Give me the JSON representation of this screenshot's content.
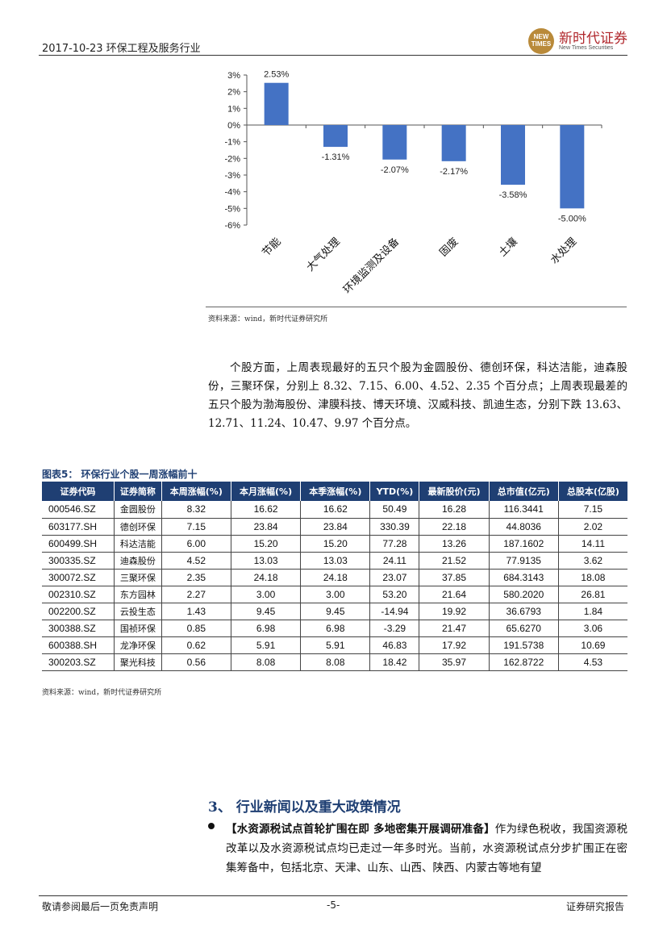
{
  "header": {
    "date_title": "2017-10-23 环保工程及服务行业",
    "logo_badge": "NEW TIMES",
    "logo_cn": "新时代证券",
    "logo_en": "New Times Securities"
  },
  "chart_data": {
    "type": "bar",
    "categories": [
      "节能",
      "大气处理",
      "环境监测及设备",
      "固废",
      "土壤",
      "水处理"
    ],
    "values": [
      2.53,
      -1.31,
      -2.07,
      -2.17,
      -3.58,
      -5.0
    ],
    "value_labels": [
      "2.53%",
      "-1.31%",
      "-2.07%",
      "-2.17%",
      "-3.58%",
      "-5.00%"
    ],
    "ylim": [
      -6,
      3
    ],
    "yticks": [
      "3%",
      "2%",
      "1%",
      "0%",
      "-1%",
      "-2%",
      "-3%",
      "-4%",
      "-5%",
      "-6%"
    ],
    "bar_color": "#4472c4",
    "grid": false,
    "title": "",
    "xlabel": "",
    "ylabel": ""
  },
  "chart_source": "资料来源：wind，新时代证券研究所",
  "paragraph": "个股方面，上周表现最好的五只个股为金圆股份、德创环保，科达洁能，迪森股份，三聚环保，分别上 8.32、7.15、6.00、4.52、2.35 个百分点；上周表现最差的五只个股为渤海股份、津膜科技、博天环境、汉威科技、凯迪生态，分别下跌 13.63、12.71、11.24、10.47、9.97 个百分点。",
  "table": {
    "title": "图表5：  环保行业个股一周涨幅前十",
    "header_color": "#1f3f73",
    "columns": [
      "证券代码",
      "证券简称",
      "本周涨幅(%)",
      "本月涨幅(%)",
      "本季涨幅(%)",
      "YTD(%)",
      "最新股价(元)",
      "总市值(亿元)",
      "总股本(亿股)"
    ],
    "rows": [
      [
        "000546.SZ",
        "金圆股份",
        "8.32",
        "16.62",
        "16.62",
        "50.49",
        "16.28",
        "116.3441",
        "7.15"
      ],
      [
        "603177.SH",
        "德创环保",
        "7.15",
        "23.84",
        "23.84",
        "330.39",
        "22.18",
        "44.8036",
        "2.02"
      ],
      [
        "600499.SH",
        "科达洁能",
        "6.00",
        "15.20",
        "15.20",
        "77.28",
        "13.26",
        "187.1602",
        "14.11"
      ],
      [
        "300335.SZ",
        "迪森股份",
        "4.52",
        "13.03",
        "13.03",
        "24.11",
        "21.52",
        "77.9135",
        "3.62"
      ],
      [
        "300072.SZ",
        "三聚环保",
        "2.35",
        "24.18",
        "24.18",
        "23.07",
        "37.85",
        "684.3143",
        "18.08"
      ],
      [
        "002310.SZ",
        "东方园林",
        "2.27",
        "3.00",
        "3.00",
        "53.20",
        "21.64",
        "580.2020",
        "26.81"
      ],
      [
        "002200.SZ",
        "云投生态",
        "1.43",
        "9.45",
        "9.45",
        "-14.94",
        "19.92",
        "36.6793",
        "1.84"
      ],
      [
        "300388.SZ",
        "国祯环保",
        "0.85",
        "6.98",
        "6.98",
        "-3.29",
        "21.47",
        "65.6270",
        "3.06"
      ],
      [
        "600388.SH",
        "龙净环保",
        "0.62",
        "5.91",
        "5.91",
        "46.83",
        "17.92",
        "191.5738",
        "10.69"
      ],
      [
        "300203.SZ",
        "聚光科技",
        "0.56",
        "8.08",
        "8.08",
        "18.42",
        "35.97",
        "162.8722",
        "4.53"
      ]
    ],
    "source": "资料来源：wind，新时代证券研究所"
  },
  "section": {
    "title": "3、  行业新闻以及重大政策情况",
    "news_headline": "【水资源税试点首轮扩围在即 多地密集开展调研准备】",
    "news_body": "作为绿色税收，我国资源税改革以及水资源税试点均已走过一年多时光。当前，水资源税试点分步扩围正在密集筹备中，包括北京、天津、山东、山西、陕西、内蒙古等地有望"
  },
  "footer": {
    "disclaimer": "敬请参阅最后一页免责声明",
    "page": "-5-",
    "report_type": "证券研究报告"
  }
}
